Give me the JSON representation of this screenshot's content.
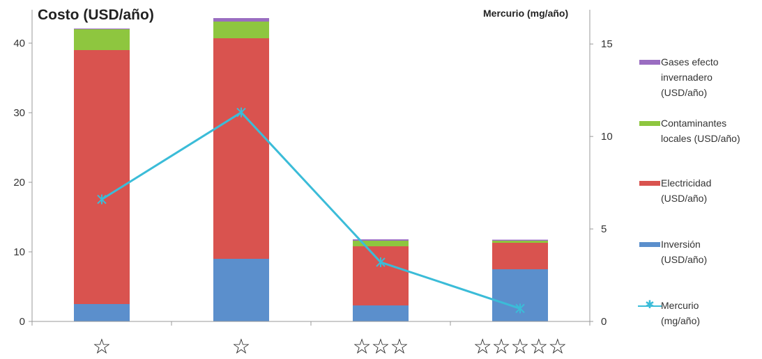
{
  "chart_data": {
    "type": "bar",
    "stacked": true,
    "categories": [
      "☆",
      "☆",
      "☆☆☆",
      "☆☆☆☆☆"
    ],
    "series": [
      {
        "name": "Inversión (USD/año)",
        "values": [
          2.5,
          9.0,
          2.3,
          7.5
        ],
        "color": "#5b8fcc"
      },
      {
        "name": "Electricidad (USD/año)",
        "values": [
          36.5,
          31.7,
          8.5,
          3.8
        ],
        "color": "#d9534f"
      },
      {
        "name": "Contaminantes locales (USD/año)",
        "values": [
          3.0,
          2.4,
          0.8,
          0.3
        ],
        "color": "#8ec63f"
      },
      {
        "name": "Gases efecto invernadero (USD/año)",
        "values": [
          0.1,
          0.5,
          0.2,
          0.15
        ],
        "color": "#9a6dc1"
      }
    ],
    "line_series": {
      "name": "Mercurio (mg/año)",
      "axis": "right",
      "values": [
        6.6,
        11.3,
        3.2,
        0.7
      ],
      "color": "#3bbcd8",
      "marker": "*"
    },
    "ylabel": "Costo (USD/año)",
    "ylabel_right": "Mercurio  (mg/año)",
    "ylim": [
      0,
      44
    ],
    "ylim_right": [
      0,
      16.55
    ],
    "yticks": [
      0,
      10,
      20,
      30,
      40
    ],
    "yticks_right": [
      0,
      5,
      10,
      15
    ],
    "legend": [
      {
        "lines": [
          "Gases efecto",
          "invernadero",
          "(USD/año)"
        ],
        "type": "bar",
        "color": "#9a6dc1"
      },
      {
        "lines": [
          "Contaminantes",
          "locales (USD/año)"
        ],
        "type": "bar",
        "color": "#8ec63f"
      },
      {
        "lines": [
          "Electricidad",
          "(USD/año)"
        ],
        "type": "bar",
        "color": "#d9534f"
      },
      {
        "lines": [
          "Inversión",
          "(USD/año)"
        ],
        "type": "bar",
        "color": "#5b8fcc"
      },
      {
        "lines": [
          "Mercurio",
          "(mg/año)"
        ],
        "type": "line",
        "color": "#3bbcd8"
      }
    ],
    "legend_position": "right",
    "grid": false
  }
}
